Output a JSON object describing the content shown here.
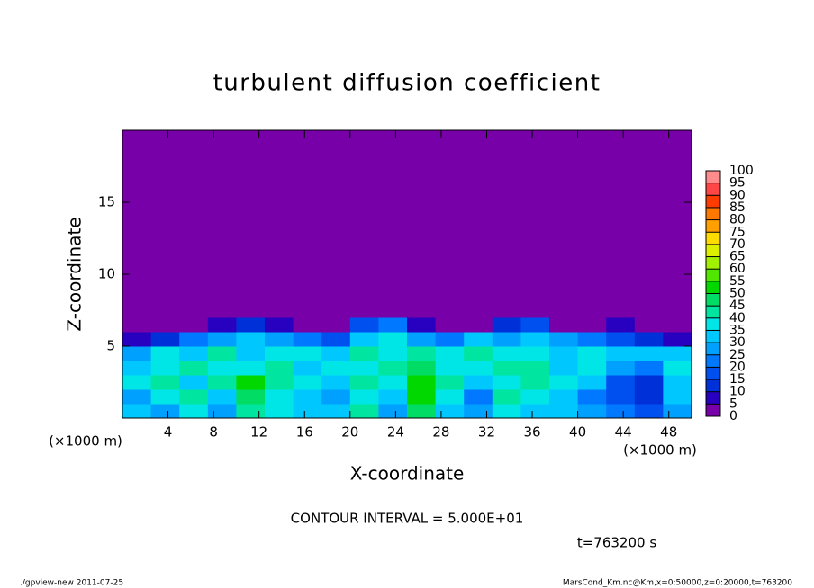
{
  "chart_data": {
    "type": "heatmap",
    "title": "turbulent diffusion coefficient",
    "xlabel": "X-coordinate",
    "ylabel": "Z-coordinate",
    "xunit": "(×1000 m)",
    "yunit": "(×1000 m)",
    "xlim": [
      0,
      50
    ],
    "ylim": [
      0,
      20
    ],
    "xticks": [
      4,
      8,
      12,
      16,
      20,
      24,
      28,
      32,
      36,
      40,
      44,
      48
    ],
    "yticks": [
      5,
      10,
      15
    ],
    "x_edges": [
      0,
      2.5,
      5,
      7.5,
      10,
      12.5,
      15,
      17.5,
      20,
      22.5,
      25,
      27.5,
      30,
      32.5,
      35,
      37.5,
      40,
      42.5,
      45,
      47.5,
      50
    ],
    "z_edges": [
      0,
      1,
      2,
      3,
      4,
      5,
      6,
      7,
      20
    ],
    "values": [
      [
        30,
        25,
        35,
        25,
        40,
        35,
        30,
        30,
        40,
        25,
        45,
        30,
        25,
        35,
        30,
        30,
        25,
        20,
        15,
        25
      ],
      [
        25,
        35,
        40,
        30,
        45,
        35,
        30,
        25,
        35,
        30,
        50,
        35,
        20,
        40,
        35,
        30,
        20,
        15,
        10,
        30
      ],
      [
        35,
        40,
        30,
        40,
        50,
        40,
        35,
        30,
        40,
        35,
        50,
        40,
        30,
        35,
        40,
        35,
        30,
        15,
        10,
        30
      ],
      [
        30,
        35,
        40,
        35,
        35,
        40,
        30,
        35,
        35,
        40,
        45,
        35,
        35,
        40,
        40,
        30,
        35,
        25,
        20,
        35
      ],
      [
        25,
        35,
        30,
        40,
        30,
        35,
        35,
        30,
        40,
        35,
        40,
        35,
        40,
        35,
        35,
        30,
        35,
        30,
        30,
        30
      ],
      [
        5,
        10,
        20,
        25,
        30,
        25,
        20,
        15,
        30,
        35,
        25,
        20,
        30,
        25,
        30,
        25,
        20,
        15,
        10,
        5
      ],
      [
        2,
        2,
        2,
        5,
        10,
        5,
        2,
        2,
        15,
        20,
        5,
        2,
        2,
        10,
        15,
        2,
        2,
        5,
        2,
        2
      ],
      [
        2,
        2,
        2,
        2,
        2,
        2,
        2,
        2,
        2,
        2,
        2,
        2,
        2,
        2,
        2,
        2,
        2,
        2,
        2,
        2
      ]
    ],
    "colorbar": {
      "levels": [
        0,
        5,
        10,
        15,
        20,
        25,
        30,
        35,
        40,
        45,
        50,
        55,
        60,
        65,
        70,
        75,
        80,
        85,
        90,
        95,
        100
      ],
      "colors": [
        "#7800a8",
        "#2800c0",
        "#0030d8",
        "#0050f0",
        "#0078ff",
        "#00a0ff",
        "#00c8ff",
        "#00e6e6",
        "#00e6a0",
        "#00dc64",
        "#00d800",
        "#50e600",
        "#a0f000",
        "#dcf000",
        "#ffdc00",
        "#ffa000",
        "#ff7800",
        "#ff3c00",
        "#ff4646",
        "#ff8c8c"
      ]
    },
    "contour_interval": "CONTOUR INTERVAL = 5.000E+01",
    "time_label": "t=763200 s",
    "footer_left": "./gpview-new  2011-07-25",
    "footer_right": "MarsCond_Km.nc@Km,x=0:50000,z=0:20000,t=763200"
  }
}
